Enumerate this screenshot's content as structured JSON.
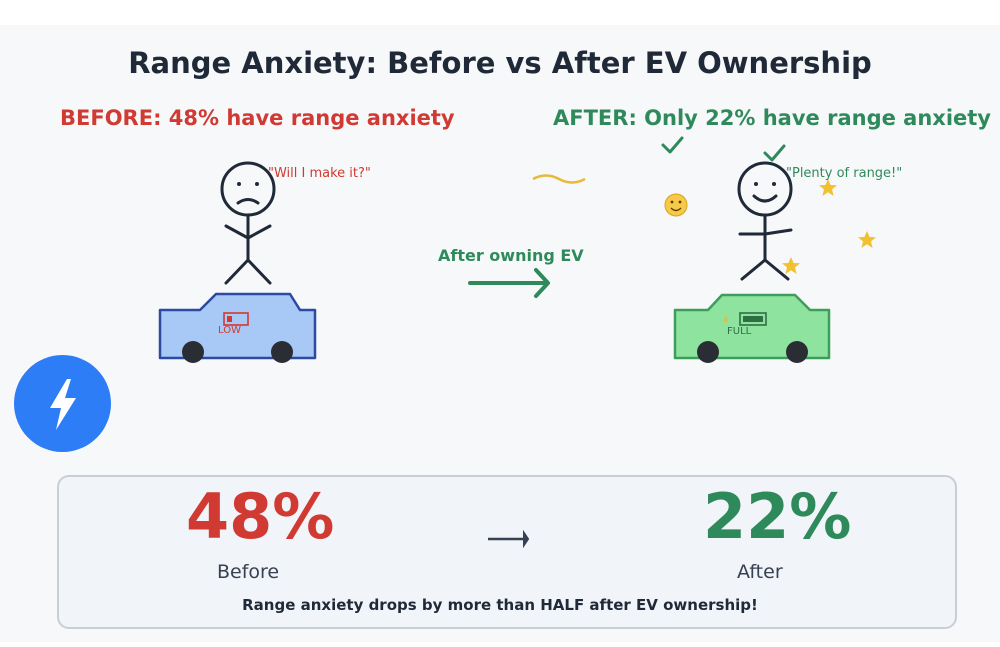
{
  "title": "Range Anxiety: Before vs After EV Ownership",
  "before": {
    "heading": "BEFORE: 48% have range anxiety",
    "quote": "\"Will I make it?\"",
    "battery_label": "LOW",
    "value": "48%",
    "label": "Before"
  },
  "after": {
    "heading": "AFTER: Only 22% have range anxiety",
    "quote": "\"Plenty of range!\"",
    "battery_label": "FULL",
    "value": "22%",
    "label": "After"
  },
  "transition_label": "After owning EV",
  "summary": "Range anxiety drops by more than HALF after EV ownership!",
  "colors": {
    "before": "#d13a32",
    "after": "#2f8a5b",
    "car_before": "#a8c8f5",
    "car_after": "#8ee39f",
    "badge": "#2d7df6",
    "star": "#f2c130"
  },
  "icons": [
    "lightning-bolt-icon",
    "smiley-icon",
    "star-icon",
    "checkmark-icon"
  ]
}
